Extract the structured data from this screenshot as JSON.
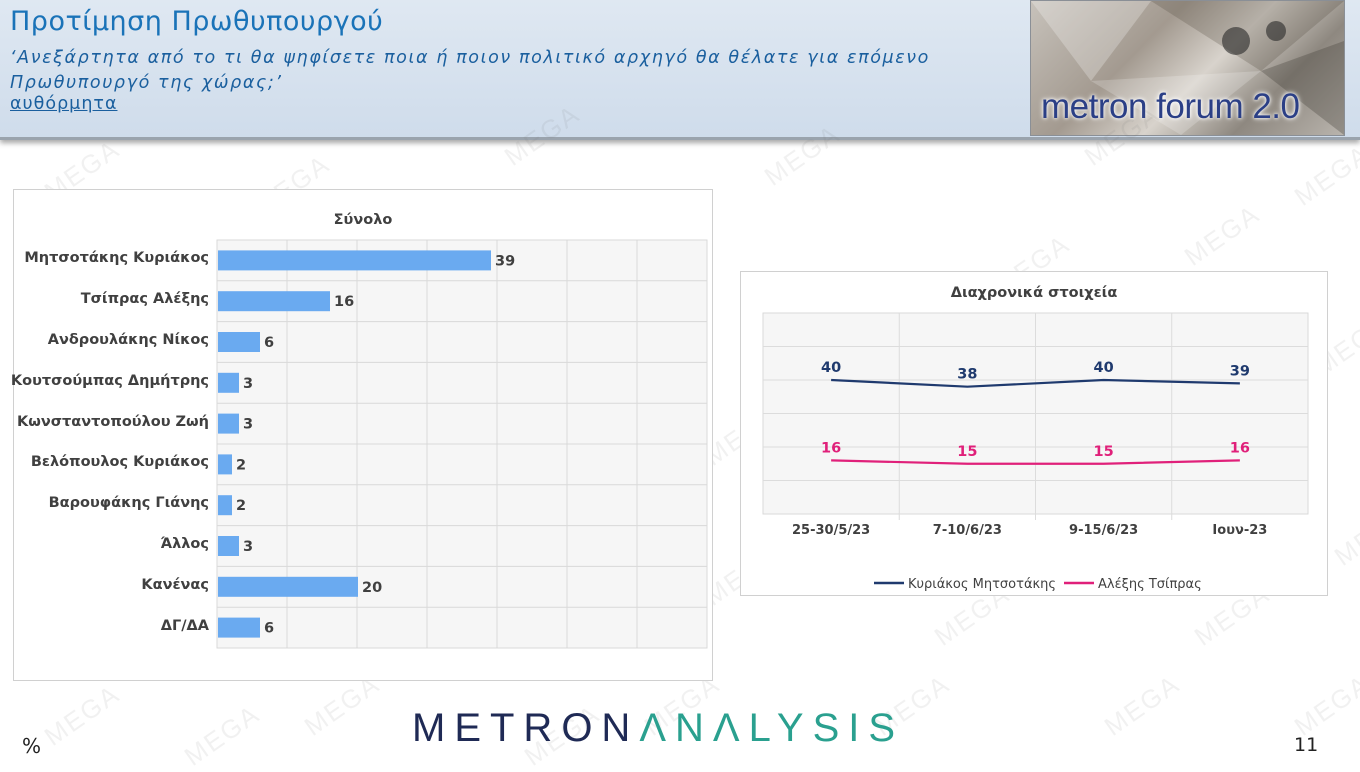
{
  "header": {
    "title": "Προτίμηση Πρωθυπουργού",
    "question": "‘Ανεξάρτητα από το τι θα ψηφίσετε ποια ή ποιον πολιτικό αρχηγό θα θέλατε για επόμενο Πρωθυπουργό της χώρας;’",
    "link": "αυθόρμητα",
    "logo": "metron forum 2.0"
  },
  "watermark": "MEGA",
  "footer": {
    "brand_dark_1": "METRON",
    "brand_accent": "ΛNΛLYSIS",
    "unit": "%",
    "page": "11"
  },
  "colors": {
    "bar": "#6aaaf0",
    "series_1": "#1f3a6e",
    "series_2": "#e0207a",
    "title": "#1a73b8"
  },
  "chart_data": [
    {
      "type": "bar",
      "orientation": "horizontal",
      "title": "Σύνολο",
      "categories": [
        "Μητσοτάκης Κυριάκος",
        "Τσίπρας Αλέξης",
        "Ανδρουλάκης Νίκος",
        "Κουτσούμπας Δημήτρης",
        "Κωνσταντοπούλου Ζωή",
        "Βελόπουλος Κυριάκος",
        "Βαρουφάκης Γιάνης",
        "Άλλος",
        "Κανένας",
        "ΔΓ/ΔΑ"
      ],
      "values": [
        39,
        16,
        6,
        3,
        3,
        2,
        2,
        3,
        20,
        6
      ],
      "xlim": [
        0,
        70
      ],
      "grid": true
    },
    {
      "type": "line",
      "title": "Διαχρονικά στοιχεία",
      "categories": [
        "25-30/5/23",
        "7-10/6/23",
        "9-15/6/23",
        "Ιουν-23"
      ],
      "series": [
        {
          "name": "Κυριάκος Μητσοτάκης",
          "values": [
            40,
            38,
            40,
            39
          ]
        },
        {
          "name": "Αλέξης Τσίπρας",
          "values": [
            16,
            15,
            15,
            16
          ]
        }
      ],
      "ylim": [
        0,
        60
      ],
      "grid": true,
      "legend": "bottom"
    }
  ]
}
